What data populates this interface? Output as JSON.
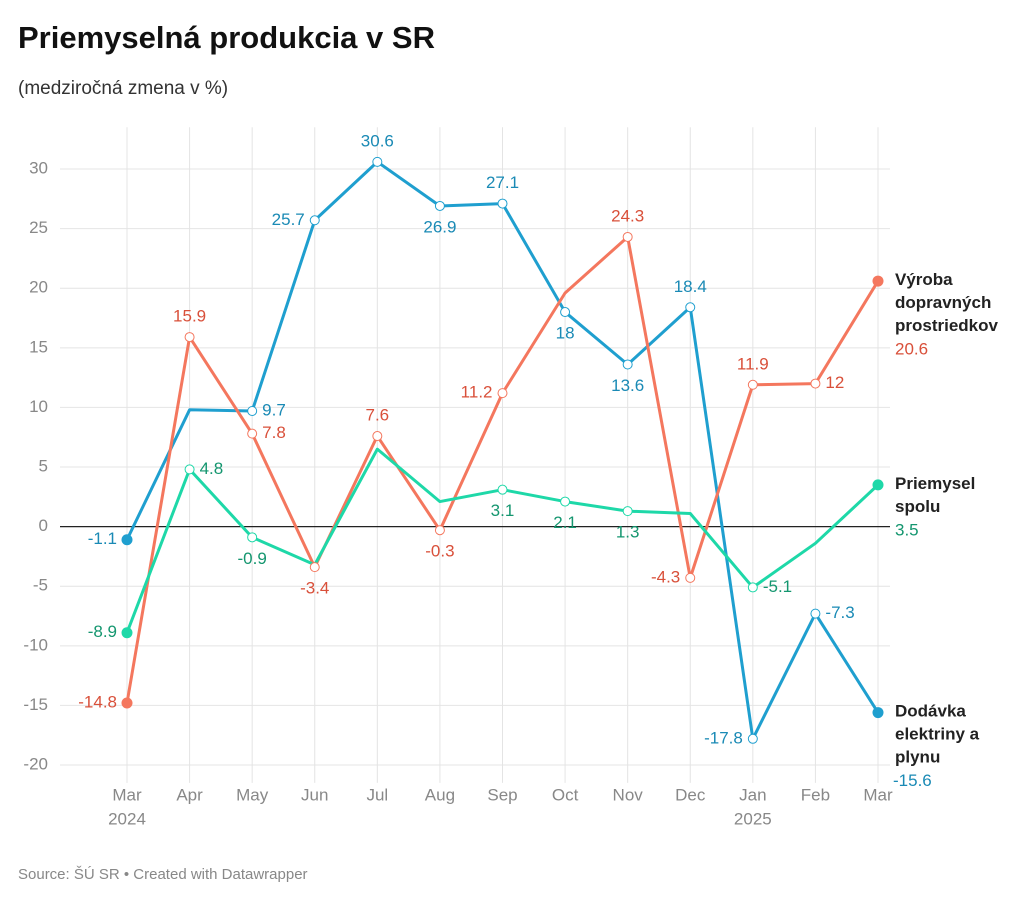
{
  "chart_data": {
    "type": "line",
    "title": "Priemyselná produkcia v SR",
    "subtitle": "(medziročná zmena v %)",
    "source": "Source: ŠÚ SR • Created with Datawrapper",
    "categories": [
      "Mar",
      "Apr",
      "May",
      "Jun",
      "Jul",
      "Aug",
      "Sep",
      "Oct",
      "Nov",
      "Dec",
      "Jan",
      "Feb",
      "Mar"
    ],
    "category_years": [
      "2024",
      null,
      null,
      null,
      null,
      null,
      null,
      null,
      null,
      null,
      "2025",
      null,
      null
    ],
    "ylim": [
      -21.5,
      33.5
    ],
    "yticks": [
      -20,
      -15,
      -10,
      -5,
      0,
      5,
      10,
      15,
      20,
      25,
      30
    ],
    "grid": true,
    "series": [
      {
        "name": "Dodávka elektriny a plynu",
        "color": "#1f9fcf",
        "label_color": "#1a8ab5",
        "values": [
          -1.1,
          9.8,
          9.7,
          25.7,
          30.6,
          26.9,
          27.1,
          18,
          13.6,
          18.4,
          -17.8,
          -7.3,
          -15.6
        ],
        "value_labels": [
          "-1.1",
          null,
          "9.7",
          "25.7",
          "30.6",
          "26.9",
          "27.1",
          "18",
          "13.6",
          "18.4",
          "-17.8",
          "-7.3",
          "-15.6"
        ]
      },
      {
        "name": "Výroba dopravných prostriedkov",
        "color": "#f4775e",
        "label_color": "#d9503a",
        "values": [
          -14.8,
          15.9,
          7.8,
          -3.4,
          7.6,
          -0.3,
          11.2,
          19.6,
          24.3,
          -4.3,
          11.9,
          12,
          20.6
        ],
        "value_labels": [
          "-14.8",
          "15.9",
          "7.8",
          "-3.4",
          "7.6",
          "-0.3",
          "11.2",
          null,
          "24.3",
          "-4.3",
          "11.9",
          "12",
          "20.6"
        ]
      },
      {
        "name": "Priemysel spolu",
        "color": "#1ed8a8",
        "label_color": "#14966f",
        "values": [
          -8.9,
          4.8,
          -0.9,
          -3.2,
          6.5,
          2.1,
          3.1,
          2.1,
          1.3,
          1.1,
          -5.1,
          -1.4,
          3.5
        ],
        "value_labels": [
          "-8.9",
          "4.8",
          "-0.9",
          null,
          null,
          null,
          "3.1",
          "2.1",
          "1.3",
          null,
          "-5.1",
          null,
          "3.5"
        ]
      }
    ]
  }
}
